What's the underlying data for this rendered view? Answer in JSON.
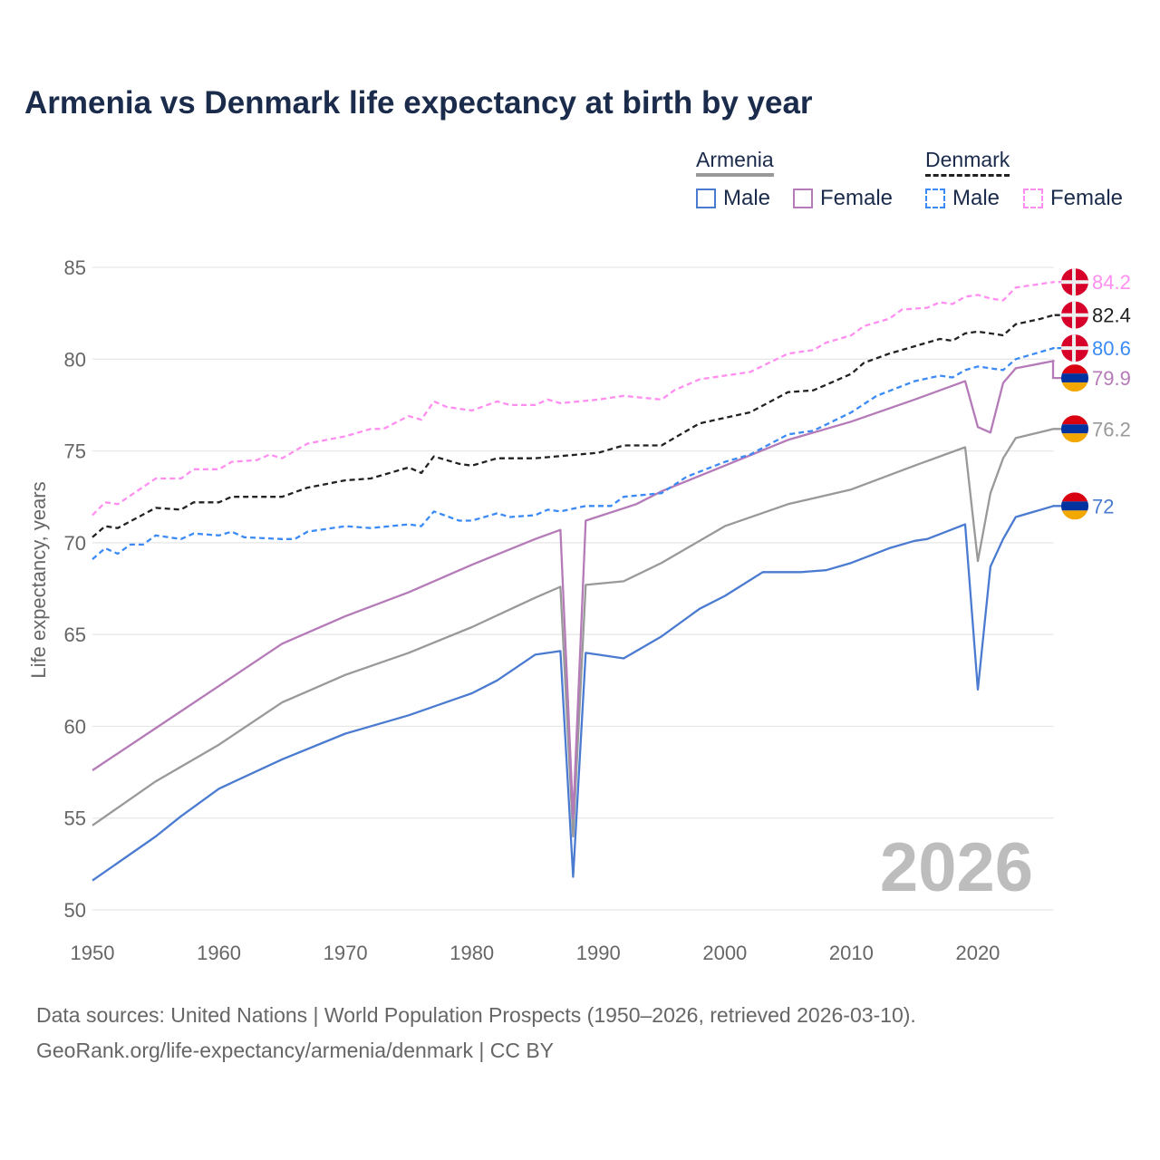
{
  "chart_data": {
    "type": "line",
    "title": "Armenia vs Denmark life expectancy at birth by year",
    "xlabel": "",
    "ylabel": "Life expectancy, years",
    "xlim": [
      1950,
      2026
    ],
    "ylim": [
      50,
      85
    ],
    "xticks": [
      "1950",
      "1960",
      "1970",
      "1980",
      "1990",
      "2000",
      "2010",
      "2020"
    ],
    "yticks": [
      "50",
      "55",
      "60",
      "65",
      "70",
      "75",
      "80",
      "85"
    ],
    "grid": true,
    "year_watermark": "2026",
    "legend": {
      "placement": "top-right",
      "groups": [
        {
          "name": "Armenia",
          "items": [
            "Male",
            "Female"
          ]
        },
        {
          "name": "Denmark",
          "items": [
            "Male",
            "Female"
          ]
        }
      ]
    },
    "series": [
      {
        "name": "Denmark Female",
        "country": "Denmark",
        "sex": "Female",
        "color": "#ff8ef0",
        "dashed": true,
        "end_label": "84.2",
        "x": [
          1950,
          1951,
          1952,
          1955,
          1957,
          1958,
          1960,
          1961,
          1963,
          1964,
          1965,
          1967,
          1970,
          1972,
          1973,
          1975,
          1976,
          1977,
          1978,
          1980,
          1982,
          1983,
          1985,
          1986,
          1987,
          1990,
          1992,
          1995,
          1996,
          1998,
          2000,
          2002,
          2005,
          2007,
          2008,
          2010,
          2011,
          2013,
          2014,
          2016,
          2017,
          2018,
          2019,
          2020,
          2021,
          2022,
          2023,
          2026
        ],
        "y": [
          71.5,
          72.2,
          72.1,
          73.5,
          73.5,
          74.0,
          74.0,
          74.4,
          74.5,
          74.8,
          74.6,
          75.4,
          75.8,
          76.2,
          76.2,
          76.9,
          76.7,
          77.7,
          77.4,
          77.2,
          77.7,
          77.5,
          77.5,
          77.8,
          77.6,
          77.8,
          78.0,
          77.8,
          78.3,
          78.9,
          79.1,
          79.3,
          80.3,
          80.5,
          80.9,
          81.3,
          81.8,
          82.2,
          82.7,
          82.8,
          83.1,
          83.0,
          83.4,
          83.5,
          83.3,
          83.2,
          83.9,
          84.2
        ]
      },
      {
        "name": "Denmark",
        "country": "Denmark",
        "sex": "Both",
        "color": "#222222",
        "dashed": true,
        "end_label": "82.4",
        "x": [
          1950,
          1951,
          1952,
          1955,
          1957,
          1958,
          1960,
          1961,
          1965,
          1967,
          1970,
          1972,
          1975,
          1976,
          1977,
          1979,
          1980,
          1982,
          1985,
          1990,
          1992,
          1995,
          1998,
          2000,
          2002,
          2005,
          2007,
          2010,
          2011,
          2013,
          2015,
          2017,
          2018,
          2019,
          2020,
          2022,
          2023,
          2025,
          2026
        ],
        "y": [
          70.3,
          70.9,
          70.8,
          71.9,
          71.8,
          72.2,
          72.2,
          72.5,
          72.5,
          73.0,
          73.4,
          73.5,
          74.1,
          73.8,
          74.7,
          74.3,
          74.2,
          74.6,
          74.6,
          74.9,
          75.3,
          75.3,
          76.5,
          76.8,
          77.1,
          78.2,
          78.3,
          79.2,
          79.8,
          80.3,
          80.7,
          81.1,
          81.0,
          81.4,
          81.5,
          81.3,
          81.9,
          82.2,
          82.4
        ]
      },
      {
        "name": "Denmark Male",
        "country": "Denmark",
        "sex": "Male",
        "color": "#3b8af5",
        "dashed": true,
        "end_label": "80.6",
        "x": [
          1950,
          1951,
          1952,
          1953,
          1954,
          1955,
          1957,
          1958,
          1960,
          1961,
          1962,
          1965,
          1966,
          1967,
          1970,
          1972,
          1975,
          1976,
          1977,
          1979,
          1980,
          1982,
          1983,
          1985,
          1986,
          1987,
          1989,
          1991,
          1992,
          1995,
          1997,
          2000,
          2002,
          2005,
          2007,
          2010,
          2012,
          2015,
          2017,
          2018,
          2019,
          2020,
          2022,
          2023,
          2026
        ],
        "y": [
          69.1,
          69.7,
          69.4,
          69.9,
          69.9,
          70.4,
          70.2,
          70.5,
          70.4,
          70.6,
          70.3,
          70.2,
          70.2,
          70.6,
          70.9,
          70.8,
          71.0,
          70.9,
          71.7,
          71.2,
          71.2,
          71.6,
          71.4,
          71.5,
          71.8,
          71.7,
          72.0,
          72.0,
          72.5,
          72.7,
          73.6,
          74.4,
          74.8,
          75.9,
          76.1,
          77.1,
          78.0,
          78.8,
          79.1,
          79.0,
          79.4,
          79.6,
          79.4,
          80.0,
          80.6
        ]
      },
      {
        "name": "Armenia Female",
        "country": "Armenia",
        "sex": "Female",
        "color": "#b57ab8",
        "dashed": false,
        "end_label": "79.9",
        "x": [
          1950,
          1955,
          1960,
          1965,
          1970,
          1975,
          1980,
          1985,
          1987,
          1988,
          1989,
          1993,
          1995,
          2000,
          2005,
          2010,
          2015,
          2019,
          2020,
          2021,
          2022,
          2023,
          2026
        ],
        "y": [
          57.6,
          59.9,
          62.2,
          64.5,
          66.0,
          67.3,
          68.8,
          70.2,
          70.7,
          55.0,
          71.2,
          72.1,
          72.8,
          74.2,
          75.6,
          76.6,
          77.8,
          78.8,
          76.3,
          76.0,
          78.7,
          79.5,
          79.9
        ]
      },
      {
        "name": "Armenia",
        "country": "Armenia",
        "sex": "Both",
        "color": "#999999",
        "dashed": false,
        "end_label": "76.2",
        "x": [
          1950,
          1955,
          1960,
          1965,
          1970,
          1975,
          1980,
          1985,
          1987,
          1988,
          1989,
          1992,
          1995,
          2000,
          2005,
          2010,
          2015,
          2019,
          2020,
          2021,
          2022,
          2023,
          2026
        ],
        "y": [
          54.6,
          57.0,
          59.0,
          61.3,
          62.8,
          64.0,
          65.4,
          67.0,
          67.6,
          54.0,
          67.7,
          67.9,
          68.9,
          70.9,
          72.1,
          72.9,
          74.2,
          75.2,
          69.0,
          72.7,
          74.6,
          75.7,
          76.2
        ]
      },
      {
        "name": "Armenia Male",
        "country": "Armenia",
        "sex": "Male",
        "color": "#4a7bd0",
        "dashed": false,
        "end_label": "72",
        "x": [
          1950,
          1955,
          1957,
          1960,
          1965,
          1970,
          1975,
          1980,
          1982,
          1985,
          1987,
          1988,
          1989,
          1990,
          1992,
          1995,
          1998,
          2000,
          2003,
          2006,
          2008,
          2010,
          2013,
          2015,
          2016,
          2019,
          2020,
          2021,
          2022,
          2023,
          2026
        ],
        "y": [
          51.6,
          54.0,
          55.1,
          56.6,
          58.2,
          59.6,
          60.6,
          61.8,
          62.5,
          63.9,
          64.1,
          51.8,
          64.0,
          63.9,
          63.7,
          64.9,
          66.4,
          67.1,
          68.4,
          68.4,
          68.5,
          68.9,
          69.7,
          70.1,
          70.2,
          71.0,
          62.0,
          68.7,
          70.2,
          71.4,
          72.0
        ]
      }
    ]
  },
  "legend_colors": {
    "armenia_male": "#4a7bd0",
    "armenia_female": "#b57ab8",
    "armenia": "#999999",
    "denmark": "#222222",
    "denmark_male": "#3b8af5",
    "denmark_female": "#ff8ef0"
  },
  "footer": {
    "line1": "Data sources: United Nations | World Population Prospects (1950–2026, retrieved 2026-03-10).",
    "line2": "GeoRank.org/life-expectancy/armenia/denmark | CC BY"
  }
}
